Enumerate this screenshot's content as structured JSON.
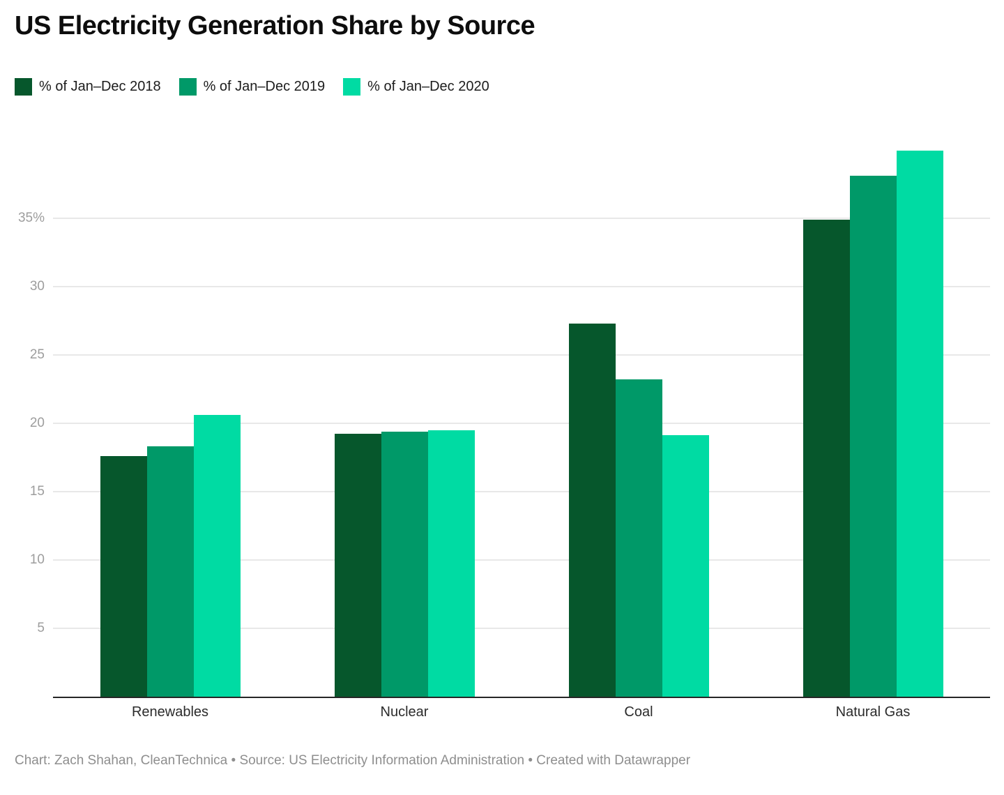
{
  "title": "US Electricity Generation Share by Source",
  "chart_data": {
    "type": "bar",
    "title": "US Electricity Generation Share by Source",
    "categories": [
      "Renewables",
      "Nuclear",
      "Coal",
      "Natural Gas"
    ],
    "series": [
      {
        "name": "% of Jan–Dec 2018",
        "color": "#06572c",
        "values": [
          17.6,
          19.2,
          27.3,
          34.9
        ]
      },
      {
        "name": "% of Jan–Dec 2019",
        "color": "#009968",
        "values": [
          18.3,
          19.4,
          23.2,
          38.1
        ]
      },
      {
        "name": "% of Jan–Dec 2020",
        "color": "#00dba3",
        "values": [
          20.6,
          19.5,
          19.1,
          39.9
        ]
      }
    ],
    "xlabel": "",
    "ylabel": "",
    "yticks": [
      5,
      10,
      15,
      20,
      25,
      30,
      35
    ],
    "ytick_labels": [
      "5",
      "10",
      "15",
      "20",
      "25",
      "30",
      "35%"
    ],
    "ylim": [
      0,
      41.3
    ],
    "grid": true,
    "legend_position": "top",
    "colors": {
      "grid": "#e8e8e8",
      "axis": "#262626",
      "tick_text": "#9d9d9d",
      "category_text": "#2b2b2b"
    }
  },
  "footer": "Chart: Zach Shahan, CleanTechnica • Source: US Electricity Information Administration • Created with Datawrapper"
}
